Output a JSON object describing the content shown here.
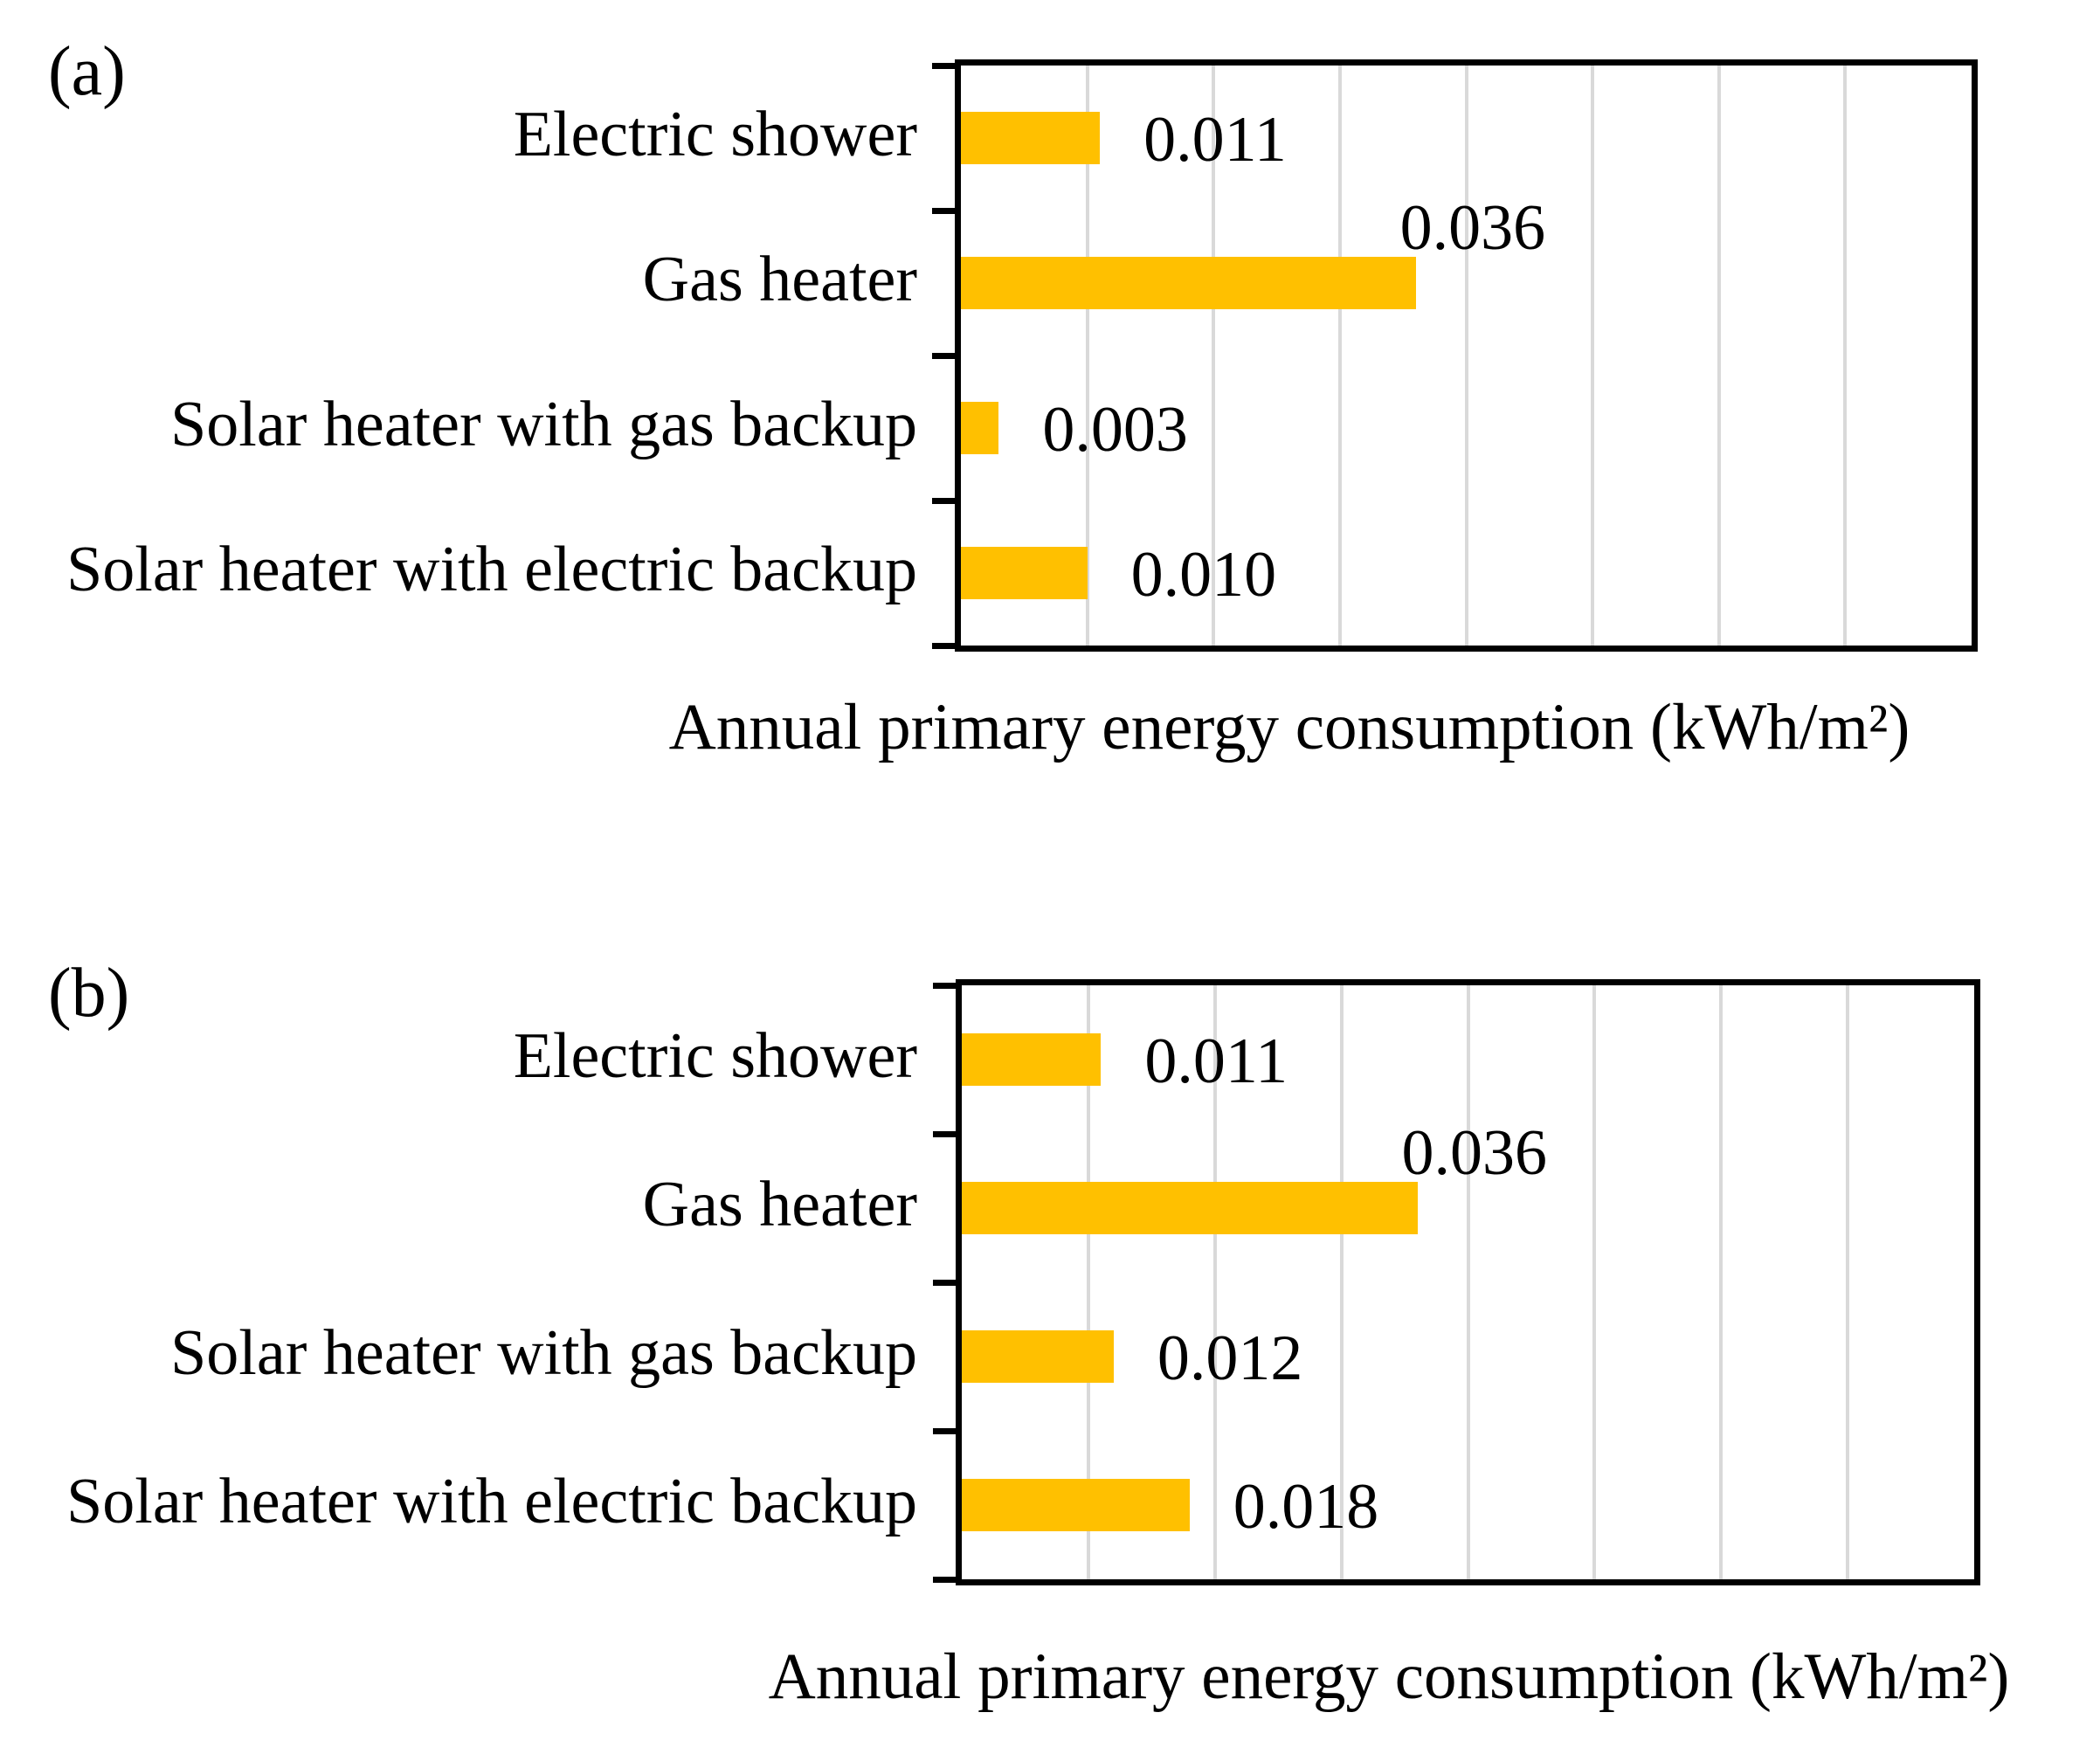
{
  "figure": {
    "panels": [
      {
        "panel_label": "(a)",
        "categories": [
          "Electric shower",
          "Gas heater",
          "Solar heater with gas backup",
          "Solar heater with electric backup"
        ],
        "value_labels": [
          "0.011",
          "0.036",
          "0.003",
          "0.010"
        ],
        "xlabel": "Annual primary energy consumption (kWh/m²)"
      },
      {
        "panel_label": "(b)",
        "categories": [
          "Electric shower",
          "Gas heater",
          "Solar heater with gas backup",
          "Solar heater with electric backup"
        ],
        "value_labels": [
          "0.011",
          "0.036",
          "0.012",
          "0.018"
        ],
        "xlabel": "Annual primary energy consumption (kWh/m²)"
      }
    ],
    "colors": {
      "bar": "#FFC000",
      "gridline": "#D9D9D9",
      "axis": "#000000",
      "text": "#000000",
      "background": "#FFFFFF"
    }
  },
  "chart_data": [
    {
      "type": "bar",
      "orientation": "horizontal",
      "panel_label": "(a)",
      "title": "",
      "categories": [
        "Electric shower",
        "Gas heater",
        "Solar heater with gas backup",
        "Solar heater with electric backup"
      ],
      "values": [
        0.011,
        0.036,
        0.003,
        0.01
      ],
      "value_labels": [
        "0.011",
        "0.036",
        "0.003",
        "0.010"
      ],
      "xlabel": "Annual primary energy consumption (kWh/m²)",
      "ylabel": "",
      "xlim": [
        0,
        0.08
      ],
      "grid_interval": 0.01,
      "grid": "vertical gridlines on",
      "legend": "none",
      "bar_color": "#FFC000"
    },
    {
      "type": "bar",
      "orientation": "horizontal",
      "panel_label": "(b)",
      "title": "",
      "categories": [
        "Electric shower",
        "Gas heater",
        "Solar heater with gas backup",
        "Solar heater with electric backup"
      ],
      "values": [
        0.011,
        0.036,
        0.012,
        0.018
      ],
      "value_labels": [
        "0.011",
        "0.036",
        "0.012",
        "0.018"
      ],
      "xlabel": "Annual primary energy consumption (kWh/m²)",
      "ylabel": "",
      "xlim": [
        0,
        0.08
      ],
      "grid_interval": 0.01,
      "grid": "vertical gridlines on",
      "legend": "none",
      "bar_color": "#FFC000"
    }
  ]
}
